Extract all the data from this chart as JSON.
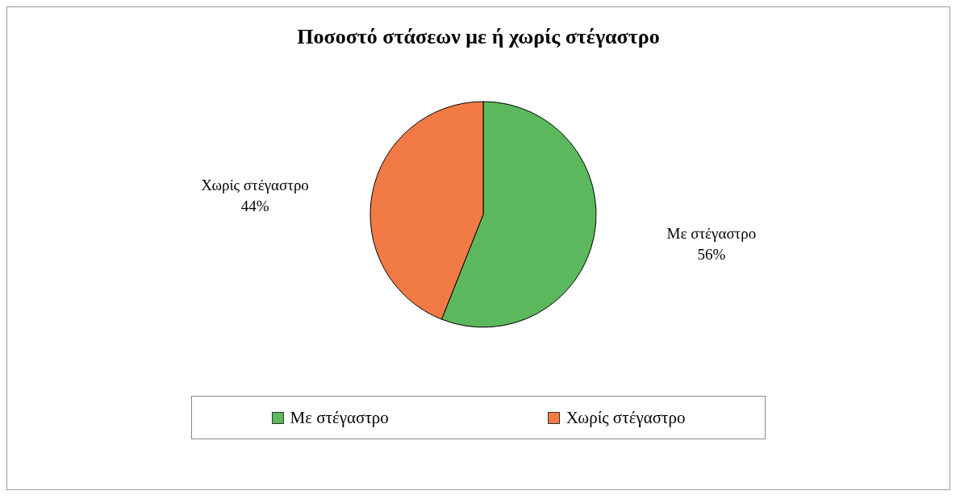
{
  "chart_data": {
    "type": "pie",
    "title": "Ποσοστό στάσεων με ή χωρίς στέγαστρο",
    "categories": [
      "Με στέγαστρο",
      "Χωρίς στέγαστρο"
    ],
    "values": [
      56,
      44
    ],
    "value_labels": [
      "56%",
      "44%"
    ],
    "colors": [
      "#5cb85c",
      "#f27a45"
    ],
    "legend": "bottom"
  }
}
